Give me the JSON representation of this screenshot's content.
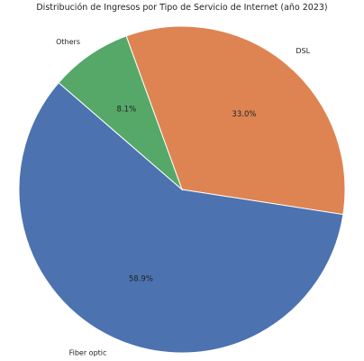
{
  "chart_data": {
    "type": "pie",
    "title": "Distribución de Ingresos por Tipo de Servicio de Internet (año 2023)",
    "slices": [
      {
        "label": "DSL",
        "value": 33.0,
        "percent_label": "33.0%",
        "color": "#dd8452"
      },
      {
        "label": "Fiber optic",
        "value": 58.9,
        "percent_label": "58.9%",
        "color": "#4c72b0"
      },
      {
        "label": "Others",
        "value": 8.1,
        "percent_label": "8.1%",
        "color": "#55a868"
      }
    ],
    "start_angle_deg": 110,
    "direction": "clockwise",
    "edge_color": "#ffffff"
  }
}
